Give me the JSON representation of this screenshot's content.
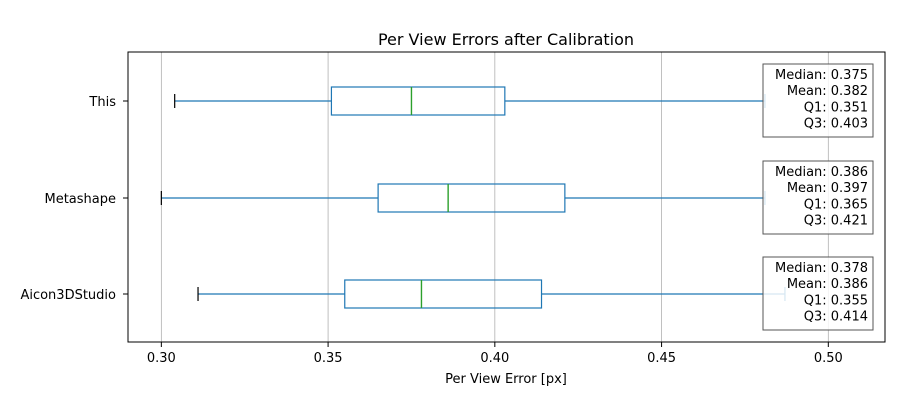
{
  "chart_data": {
    "type": "boxplot",
    "orientation": "horizontal",
    "title": "Per View Errors after Calibration",
    "xlabel": "Per View Error [px]",
    "ylabel": "",
    "xlim": [
      0.29,
      0.517
    ],
    "xticks": [
      0.3,
      0.35,
      0.4,
      0.45,
      0.5
    ],
    "xtick_labels": [
      "0.30",
      "0.35",
      "0.40",
      "0.45",
      "0.50"
    ],
    "grid": "vertical",
    "categories": [
      "This",
      "Metashape",
      "Aicon3DStudio"
    ],
    "boxes": [
      {
        "name": "This",
        "whisker_low": 0.304,
        "q1": 0.351,
        "median": 0.375,
        "q3": 0.403,
        "whisker_high": 0.481,
        "mean": 0.382
      },
      {
        "name": "Metashape",
        "whisker_low": 0.3,
        "q1": 0.365,
        "median": 0.386,
        "q3": 0.421,
        "whisker_high": 0.481,
        "mean": 0.397
      },
      {
        "name": "Aicon3DStudio",
        "whisker_low": 0.311,
        "q1": 0.355,
        "median": 0.378,
        "q3": 0.414,
        "whisker_high": 0.487,
        "mean": 0.386
      }
    ],
    "annotations": [
      [
        "Median: 0.375",
        "Mean: 0.382",
        "Q1: 0.351",
        "Q3: 0.403"
      ],
      [
        "Median: 0.386",
        "Mean: 0.397",
        "Q1: 0.365",
        "Q3: 0.421"
      ],
      [
        "Median: 0.378",
        "Mean: 0.386",
        "Q1: 0.355",
        "Q3: 0.414"
      ]
    ],
    "colors": {
      "box": "#1f77b4",
      "median": "#2ca02c",
      "grid": "#b0b0b0",
      "axis": "#000000",
      "annotation_border": "#555555"
    }
  }
}
